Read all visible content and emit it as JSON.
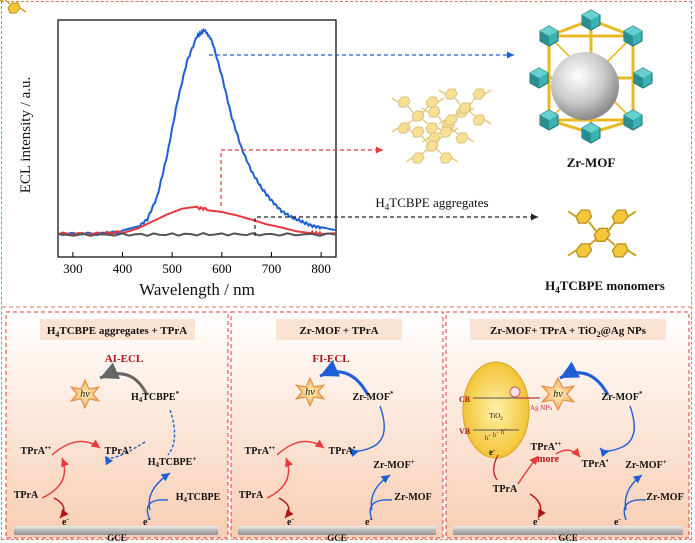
{
  "chart_data": {
    "type": "line",
    "xlabel": "Wavelength / nm",
    "ylabel": "ECL intensity / a.u.",
    "xlim": [
      270,
      830
    ],
    "x_ticks": [
      "300",
      "400",
      "500",
      "600",
      "700",
      "800"
    ],
    "grid": false,
    "series": [
      {
        "color": "#1f5fd6",
        "x": [
          270,
          350,
          400,
          430,
          450,
          470,
          490,
          510,
          530,
          550,
          565,
          580,
          600,
          620,
          640,
          660,
          680,
          700,
          720,
          740,
          760,
          780,
          800,
          830
        ],
        "values": [
          0.02,
          0.02,
          0.03,
          0.05,
          0.09,
          0.2,
          0.4,
          0.65,
          0.85,
          0.97,
          1.0,
          0.95,
          0.78,
          0.58,
          0.43,
          0.32,
          0.24,
          0.18,
          0.13,
          0.1,
          0.08,
          0.06,
          0.05,
          0.04
        ]
      },
      {
        "color": "#e8383a",
        "x": [
          270,
          350,
          400,
          430,
          460,
          490,
          520,
          550,
          570,
          600,
          630,
          660,
          690,
          720,
          750,
          780,
          800,
          830
        ],
        "values": [
          0.02,
          0.02,
          0.03,
          0.05,
          0.08,
          0.11,
          0.135,
          0.145,
          0.14,
          0.13,
          0.11,
          0.085,
          0.06,
          0.045,
          0.03,
          0.025,
          0.02,
          0.02
        ]
      },
      {
        "color": "#555555",
        "x": [
          270,
          400,
          500,
          600,
          700,
          830
        ],
        "values": [
          0.015,
          0.016,
          0.017,
          0.018,
          0.017,
          0.016
        ]
      }
    ]
  },
  "labels": {
    "zr_mof": "Zr-MOF",
    "aggregates": "H4TCBPE aggregates",
    "monomers": "H4TCBPE monomers"
  },
  "panels": [
    {
      "title": "H4TCBPE aggregates + TPrA",
      "mode": "AI-ECL",
      "emitter": "H4TCBPE*",
      "radical": "H4TCBPE+",
      "ground": "H4TCBPE"
    },
    {
      "title": "Zr-MOF + TPrA",
      "mode": "FI-ECL",
      "emitter": "Zr-MOF*",
      "radical": "Zr-MOF+",
      "ground": "Zr-MOF"
    },
    {
      "title": "Zr-MOF+ TPrA + TiO2@Ag NPs",
      "mode": "",
      "emitter": "Zr-MOF*",
      "radical": "Zr-MOF+",
      "ground": "Zr-MOF"
    }
  ],
  "common": {
    "tpra": "TPrA",
    "tpra_rad_cation": "TPrA•+",
    "tpra_rad": "TPrA•",
    "hv": "hν",
    "electrode": "GCE",
    "electron": "e-",
    "more": "more",
    "cb": "CB",
    "vb": "VB",
    "tio2": "TiO2",
    "ag": "Ag NPs"
  },
  "colors": {
    "blue": "#1f5fd6",
    "red": "#e8383a",
    "gray": "#555555",
    "accent": "#e07a5a",
    "panel_bg": "#fbe3d4",
    "yellow": "#f2c230",
    "teal": "#2fa6a8"
  }
}
